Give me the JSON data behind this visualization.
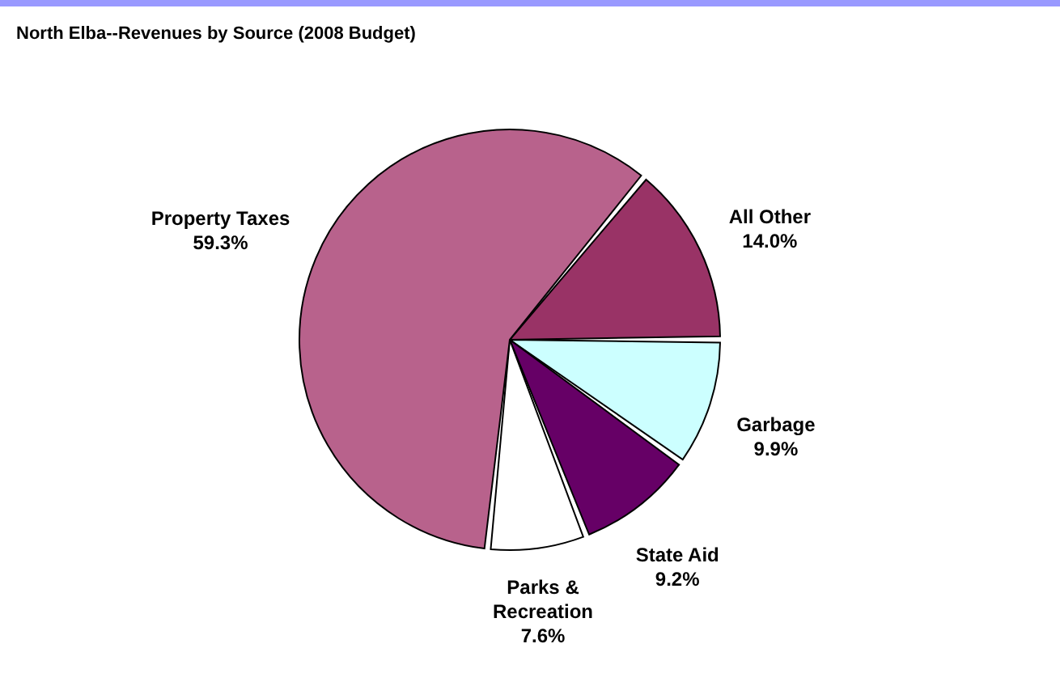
{
  "chart_data": {
    "type": "pie",
    "title": "North Elba--Revenues  by Source (2008 Budget)",
    "categories": [
      "All Other",
      "Garbage",
      "State Aid",
      "Parks & Recreation",
      "Property Taxes"
    ],
    "values": [
      14.0,
      9.9,
      9.2,
      7.6,
      59.3
    ],
    "value_labels": [
      "14.0%",
      "9.9%",
      "9.2%",
      "7.6%",
      "59.3%"
    ],
    "colors": [
      "#993366",
      "#ccffff",
      "#660066",
      "#ffffff",
      "#b8628c"
    ],
    "legend": false
  }
}
